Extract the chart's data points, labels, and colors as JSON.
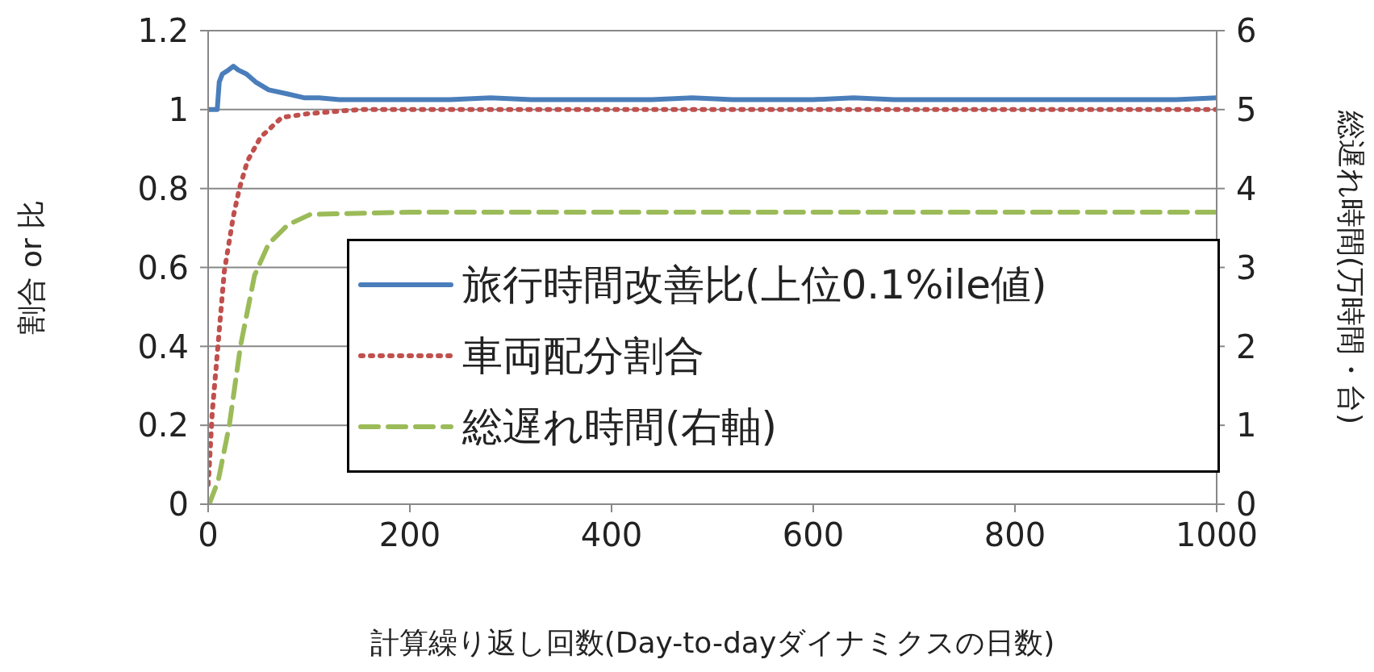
{
  "chart_data": {
    "type": "line",
    "xlabel": "計算繰り返し回数(Day-to-dayダイナミクスの日数)",
    "ylabel": "割合 or 比",
    "y2label": "総遅れ時間(万時間・台)",
    "xlim": [
      0,
      1000
    ],
    "xticks": [
      0,
      200,
      400,
      600,
      800,
      1000
    ],
    "ylim": [
      0,
      1.2
    ],
    "yticks": [
      0,
      0.2,
      0.4,
      0.6,
      0.8,
      1,
      1.2
    ],
    "y2lim": [
      0,
      6
    ],
    "y2ticks": [
      0,
      1,
      2,
      3,
      4,
      5,
      6
    ],
    "grid": "y",
    "legend": "bottom right",
    "marker": "none",
    "series": [
      {
        "name": "旅行時間改善比(上位0.1%ile値)",
        "color": "#4a7ebb",
        "line_style": "solid",
        "x": [
          0,
          9,
          11,
          14,
          20,
          25,
          30,
          38,
          47,
          60,
          78,
          95,
          110,
          130,
          160,
          200,
          240,
          280,
          320,
          360,
          400,
          440,
          480,
          520,
          560,
          600,
          640,
          680,
          720,
          760,
          800,
          840,
          880,
          920,
          960,
          1000
        ],
        "values": [
          1,
          1,
          1.07,
          1.09,
          1.1,
          1.11,
          1.1,
          1.09,
          1.07,
          1.05,
          1.04,
          1.03,
          1.03,
          1.025,
          1.025,
          1.025,
          1.025,
          1.03,
          1.025,
          1.025,
          1.025,
          1.025,
          1.03,
          1.025,
          1.025,
          1.025,
          1.03,
          1.025,
          1.025,
          1.025,
          1.025,
          1.025,
          1.025,
          1.025,
          1.025,
          1.03
        ]
      },
      {
        "name": "車両配分割合",
        "color": "#c0504d",
        "line_style": "dotted",
        "x": [
          0,
          1,
          4,
          10,
          16,
          25,
          31,
          39,
          52,
          73,
          100,
          150,
          300,
          500,
          700,
          1000
        ],
        "values": [
          0.05,
          0.09,
          0.23,
          0.41,
          0.59,
          0.73,
          0.8,
          0.87,
          0.93,
          0.98,
          0.99,
          1,
          1,
          1,
          1,
          1
        ]
      },
      {
        "name": "総遅れ時間(右軸)",
        "color": "#9bbb59",
        "line_style": "dashed",
        "axis": "y2",
        "x": [
          1,
          10,
          21,
          32,
          46,
          60,
          79,
          101,
          126,
          200,
          400,
          600,
          800,
          1000
        ],
        "values": [
          0,
          0.3,
          1,
          2,
          2.9,
          3.3,
          3.54,
          3.67,
          3.68,
          3.7,
          3.7,
          3.7,
          3.7,
          3.7
        ]
      }
    ]
  }
}
